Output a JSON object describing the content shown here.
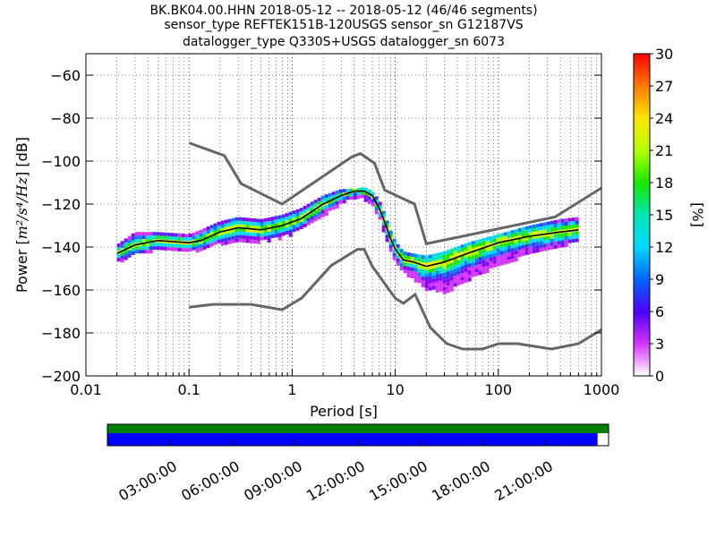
{
  "chart_data": {
    "type": "heatmap",
    "title_lines": [
      "BK.BK04.00.HHN   2018-05-12 -- 2018-05-12  (46/46 segments)",
      "sensor_type REFTEK151B-120USGS sensor_sn G12187VS",
      "datalogger_type Q330S+USGS datalogger_sn 6073"
    ],
    "xlabel": "Period [s]",
    "ylabel_prefix": "Power [",
    "ylabel_units": "m²/s⁴/Hz",
    "ylabel_suffix": "] [dB]",
    "x_scale": "log",
    "xlim": [
      0.01,
      1000
    ],
    "ylim": [
      -200,
      -50
    ],
    "x_ticks": [
      {
        "value": 0.01,
        "label": "0.01"
      },
      {
        "value": 0.1,
        "label": "0.1"
      },
      {
        "value": 1,
        "label": "1"
      },
      {
        "value": 10,
        "label": "10"
      },
      {
        "value": 100,
        "label": "100"
      },
      {
        "value": 1000,
        "label": "1000"
      }
    ],
    "y_ticks": [
      {
        "value": -60,
        "label": "−60"
      },
      {
        "value": -80,
        "label": "−80"
      },
      {
        "value": -100,
        "label": "−100"
      },
      {
        "value": -120,
        "label": "−120"
      },
      {
        "value": -140,
        "label": "−140"
      },
      {
        "value": -160,
        "label": "−160"
      },
      {
        "value": -180,
        "label": "−180"
      },
      {
        "value": -200,
        "label": "−200"
      }
    ],
    "grid": "dotted",
    "colorbar": {
      "label": "[%]",
      "range": [
        0,
        30
      ],
      "ticks": [
        "0",
        "3",
        "6",
        "9",
        "12",
        "15",
        "18",
        "21",
        "24",
        "27",
        "30"
      ],
      "placement": "right"
    },
    "mode_line": {
      "color": "#000000",
      "x": [
        0.02,
        0.03,
        0.05,
        0.1,
        0.13,
        0.2,
        0.3,
        0.5,
        0.8,
        1.2,
        2,
        3,
        4,
        5,
        6,
        7,
        8,
        9,
        10,
        12,
        15,
        20,
        30,
        50,
        100,
        200,
        400,
        600
      ],
      "y": [
        -143,
        -139,
        -137,
        -138,
        -137,
        -133,
        -131,
        -132,
        -130,
        -127,
        -120,
        -116,
        -114,
        -114,
        -116,
        -122,
        -129,
        -136,
        -141,
        -146,
        -147,
        -149,
        -147,
        -143,
        -138,
        -135,
        -133,
        -132
      ]
    },
    "density": {
      "x": [
        0.02,
        0.03,
        0.05,
        0.1,
        0.13,
        0.2,
        0.3,
        0.5,
        0.8,
        1.2,
        2,
        3,
        4,
        5,
        6,
        7,
        8,
        9,
        10,
        12,
        15,
        20,
        30,
        50,
        100,
        200,
        400,
        600
      ],
      "y_low": [
        -147,
        -143,
        -141,
        -141,
        -141,
        -138,
        -137,
        -137,
        -135,
        -132,
        -125,
        -119,
        -117,
        -117,
        -120,
        -126,
        -134,
        -141,
        -146,
        -151,
        -154,
        -159,
        -161,
        -155,
        -148,
        -143,
        -139,
        -137
      ],
      "y_high": [
        -139,
        -133,
        -133,
        -134,
        -132,
        -128,
        -126,
        -127,
        -125,
        -122,
        -116,
        -113,
        -113,
        -112,
        -114,
        -118,
        -125,
        -132,
        -137,
        -142,
        -143,
        -144,
        -142,
        -138,
        -134,
        -130,
        -127,
        -126
      ]
    },
    "noise_models": [
      {
        "color": "#666666",
        "x": [
          0.1,
          0.22,
          0.32,
          0.8,
          3.8,
          4.6,
          6.3,
          7.9,
          15.4,
          20,
          354.8,
          1000
        ],
        "y": [
          -91.5,
          -97.4,
          -110.5,
          -120,
          -98,
          -96.5,
          -101,
          -113.5,
          -120,
          -138.5,
          -126,
          -112.5
        ]
      },
      {
        "color": "#666666",
        "x": [
          0.1,
          0.17,
          0.4,
          0.8,
          1.24,
          2.4,
          4.3,
          5,
          6,
          10,
          12,
          15.6,
          21.9,
          31.6,
          45,
          70,
          101,
          154,
          328,
          600,
          1000
        ],
        "y": [
          -168,
          -166.7,
          -166.7,
          -169.2,
          -163.7,
          -148.6,
          -141.1,
          -141.1,
          -149,
          -163.8,
          -166.2,
          -162.1,
          -177.5,
          -185,
          -187.5,
          -187.5,
          -185,
          -185,
          -187.5,
          -185,
          -178.5
        ]
      }
    ]
  },
  "coverage": {
    "time_ticks": [
      "03:00:00",
      "06:00:00",
      "09:00:00",
      "12:00:00",
      "15:00:00",
      "18:00:00",
      "21:00:00"
    ],
    "data_fraction": 0.978,
    "top_color": "#008000",
    "data_color": "#0000ff"
  }
}
